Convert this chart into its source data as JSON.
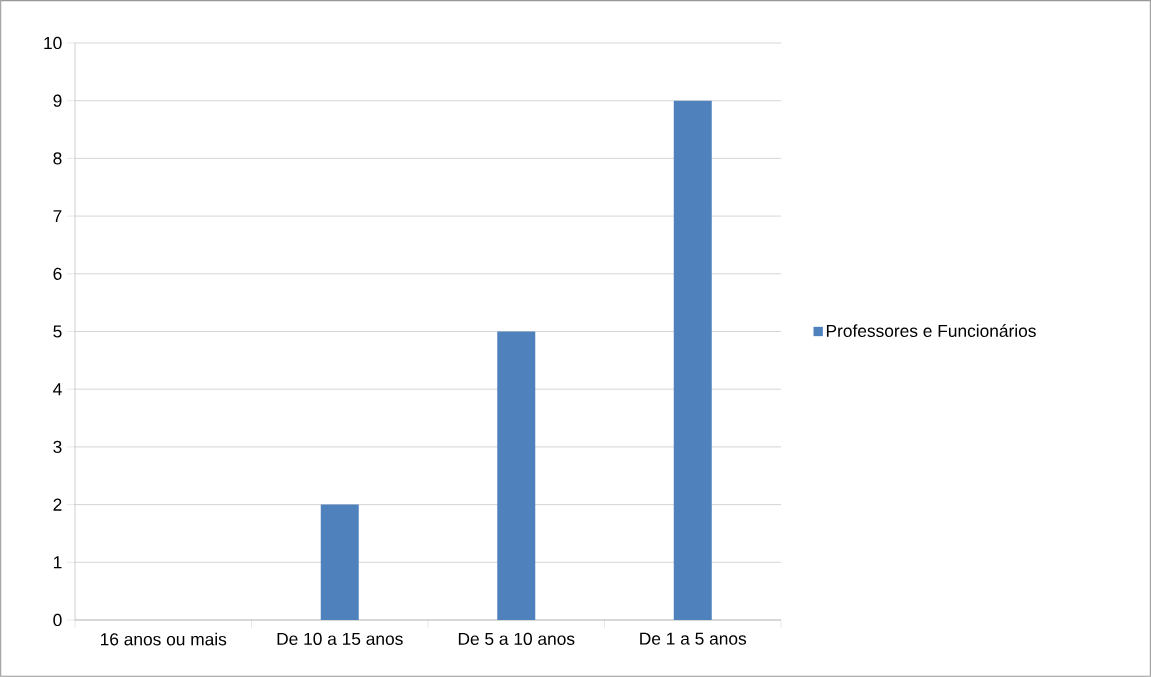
{
  "chart_data": {
    "type": "bar",
    "categories": [
      "16 anos ou mais",
      "De 10 a 15 anos",
      "De 5 a 10 anos",
      "De 1 a 5 anos"
    ],
    "series": [
      {
        "name": "Professores e Funcionários",
        "color": "#4f81bd",
        "values": [
          0,
          2,
          5,
          9
        ]
      }
    ],
    "ylim": [
      0,
      10
    ],
    "yticks": [
      0,
      1,
      2,
      3,
      4,
      5,
      6,
      7,
      8,
      9,
      10
    ],
    "grid": "y",
    "legend": "right"
  }
}
